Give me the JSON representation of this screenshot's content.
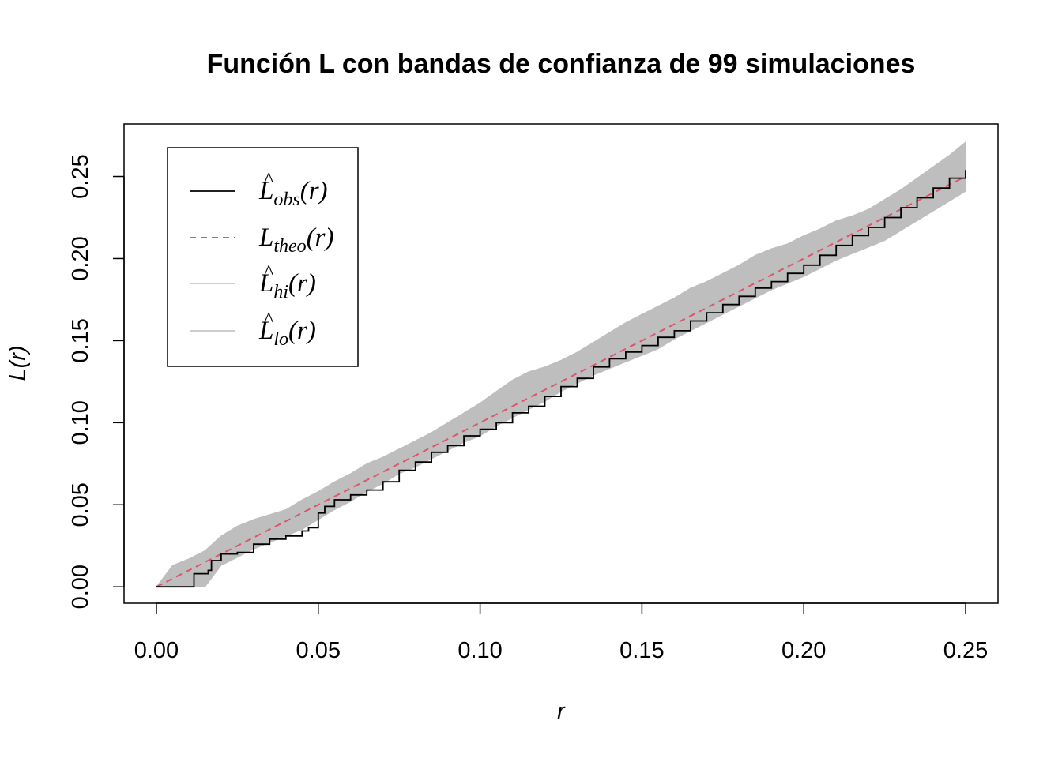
{
  "chart_data": {
    "type": "line",
    "title": "Función L con bandas de confianza de 99 simulaciones",
    "xlabel": "r",
    "ylabel": "L(r)",
    "xlim": [
      -0.01,
      0.26
    ],
    "ylim": [
      -0.01,
      0.282
    ],
    "x_ticks": [
      "0.00",
      "0.05",
      "0.10",
      "0.15",
      "0.20",
      "0.25"
    ],
    "y_ticks": [
      "0.00",
      "0.05",
      "0.10",
      "0.15",
      "0.20",
      "0.25"
    ],
    "grid": false,
    "legend_position": "top-left",
    "legend": [
      {
        "symbol": "L",
        "hat": "^",
        "subscript": "obs",
        "suffix": "(r)",
        "color": "#000000",
        "style": "solid"
      },
      {
        "symbol": "L",
        "hat": "",
        "subscript": "theo",
        "suffix": "(r)",
        "color": "#DF536B",
        "style": "dashed"
      },
      {
        "symbol": "L",
        "hat": "^",
        "subscript": "hi",
        "suffix": "(r)",
        "color": "#BEBEBE",
        "style": "solid"
      },
      {
        "symbol": "L",
        "hat": "^",
        "subscript": "lo",
        "suffix": "(r)",
        "color": "#BEBEBE",
        "style": "solid"
      }
    ],
    "series": [
      {
        "name": "obs",
        "x": [
          0.0,
          0.0115,
          0.0116,
          0.016,
          0.017,
          0.02,
          0.022,
          0.025,
          0.03,
          0.035,
          0.04,
          0.045,
          0.047,
          0.05,
          0.052,
          0.055,
          0.06,
          0.065,
          0.07,
          0.075,
          0.08,
          0.085,
          0.09,
          0.095,
          0.1,
          0.105,
          0.11,
          0.115,
          0.12,
          0.125,
          0.13,
          0.135,
          0.14,
          0.145,
          0.15,
          0.155,
          0.16,
          0.165,
          0.17,
          0.175,
          0.18,
          0.185,
          0.19,
          0.195,
          0.2,
          0.205,
          0.21,
          0.215,
          0.22,
          0.225,
          0.23,
          0.235,
          0.24,
          0.245,
          0.25
        ],
        "y": [
          0.0,
          0.0,
          0.008,
          0.01,
          0.016,
          0.02,
          0.02,
          0.021,
          0.026,
          0.029,
          0.031,
          0.034,
          0.036,
          0.045,
          0.049,
          0.053,
          0.056,
          0.059,
          0.064,
          0.071,
          0.076,
          0.082,
          0.086,
          0.092,
          0.096,
          0.1,
          0.106,
          0.11,
          0.116,
          0.122,
          0.127,
          0.134,
          0.139,
          0.143,
          0.147,
          0.152,
          0.156,
          0.162,
          0.167,
          0.172,
          0.177,
          0.182,
          0.186,
          0.191,
          0.196,
          0.202,
          0.208,
          0.214,
          0.219,
          0.225,
          0.231,
          0.237,
          0.243,
          0.249,
          0.254
        ],
        "color": "#000000"
      },
      {
        "name": "theo",
        "x": [
          0.0,
          0.25
        ],
        "y": [
          0.0,
          0.25
        ],
        "color": "#DF536B"
      },
      {
        "name": "hi",
        "x": [
          0.0,
          0.005,
          0.01,
          0.015,
          0.02,
          0.025,
          0.03,
          0.035,
          0.04,
          0.045,
          0.05,
          0.055,
          0.06,
          0.065,
          0.07,
          0.075,
          0.08,
          0.085,
          0.09,
          0.095,
          0.1,
          0.105,
          0.11,
          0.115,
          0.12,
          0.125,
          0.13,
          0.135,
          0.14,
          0.145,
          0.15,
          0.155,
          0.16,
          0.165,
          0.17,
          0.175,
          0.18,
          0.185,
          0.19,
          0.195,
          0.2,
          0.205,
          0.21,
          0.215,
          0.22,
          0.225,
          0.23,
          0.235,
          0.24,
          0.245,
          0.25
        ],
        "y": [
          0.0,
          0.013,
          0.017,
          0.022,
          0.031,
          0.037,
          0.041,
          0.044,
          0.047,
          0.053,
          0.058,
          0.064,
          0.069,
          0.075,
          0.079,
          0.084,
          0.089,
          0.094,
          0.1,
          0.106,
          0.112,
          0.119,
          0.126,
          0.131,
          0.134,
          0.138,
          0.143,
          0.149,
          0.155,
          0.161,
          0.166,
          0.171,
          0.176,
          0.182,
          0.186,
          0.191,
          0.196,
          0.202,
          0.206,
          0.209,
          0.214,
          0.218,
          0.223,
          0.226,
          0.23,
          0.236,
          0.242,
          0.249,
          0.256,
          0.263,
          0.271
        ],
        "color": "#BEBEBE"
      },
      {
        "name": "lo",
        "x": [
          0.0,
          0.005,
          0.01,
          0.015,
          0.02,
          0.025,
          0.03,
          0.035,
          0.04,
          0.045,
          0.05,
          0.055,
          0.06,
          0.065,
          0.07,
          0.075,
          0.08,
          0.085,
          0.09,
          0.095,
          0.1,
          0.105,
          0.11,
          0.115,
          0.12,
          0.125,
          0.13,
          0.135,
          0.14,
          0.145,
          0.15,
          0.155,
          0.16,
          0.165,
          0.17,
          0.175,
          0.18,
          0.185,
          0.19,
          0.195,
          0.2,
          0.205,
          0.21,
          0.215,
          0.22,
          0.225,
          0.23,
          0.235,
          0.24,
          0.245,
          0.25
        ],
        "y": [
          0.0,
          0.0,
          0.0,
          0.0,
          0.013,
          0.018,
          0.023,
          0.027,
          0.031,
          0.035,
          0.041,
          0.047,
          0.052,
          0.058,
          0.063,
          0.069,
          0.073,
          0.078,
          0.083,
          0.088,
          0.092,
          0.098,
          0.103,
          0.108,
          0.113,
          0.119,
          0.124,
          0.129,
          0.133,
          0.137,
          0.141,
          0.145,
          0.151,
          0.156,
          0.161,
          0.166,
          0.171,
          0.176,
          0.181,
          0.185,
          0.189,
          0.194,
          0.199,
          0.203,
          0.207,
          0.211,
          0.217,
          0.223,
          0.229,
          0.235,
          0.241
        ],
        "color": "#BEBEBE"
      }
    ]
  }
}
